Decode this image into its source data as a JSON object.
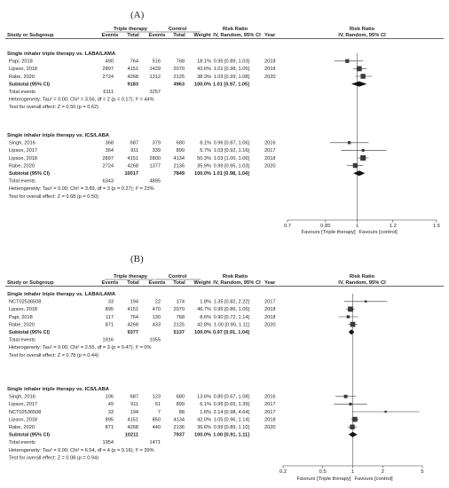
{
  "panels": [
    {
      "label": "(A)",
      "header": {
        "col_group_1": "Triple therapy",
        "col_group_2": "Control",
        "col_group_3": "Risk Ratio",
        "col_group_4": "Risk Ratio",
        "study": "Study or Subgroup",
        "events1": "Events",
        "total1": "Total",
        "events2": "Events",
        "total2": "Total",
        "weight": "Weight",
        "method": "IV, Random, 95% CI",
        "year": "Year",
        "method2": "IV, Random, 95% CI"
      },
      "subgroups": [
        {
          "title": "Single inhaler triple therapy vs. LABA/LAMA",
          "rows": [
            {
              "study": "Papi, 2018",
              "events1": "490",
              "total1": "764",
              "events2": "516",
              "total2": "768",
              "weight": "18.1%",
              "ci": "0.95 [0.89, 1.03]",
              "year": "2018"
            },
            {
              "study": "Lipson, 2018",
              "events1": "2897",
              "total1": "4151",
              "events2": "1429",
              "total2": "2070",
              "weight": "43.6%",
              "ci": "1.01 [0.98, 1.05]",
              "year": "2018"
            },
            {
              "study": "Rabe, 2020",
              "events1": "2724",
              "total1": "4268",
              "events2": "1312",
              "total2": "2125",
              "weight": "38.3%",
              "ci": "1.03 [0.99, 1.08]",
              "year": "2020"
            }
          ],
          "subtotal": {
            "label": "Subtotal (95% CI)",
            "total1": "9183",
            "total2": "4963",
            "weight": "100.0%",
            "ci": "1.01 [0.97, 1.05]"
          },
          "total_events": {
            "label": "Total events",
            "events1": "6111",
            "events2": "3257"
          },
          "heterogeneity": "Heterogeneity: Tau² = 0.00; Chi² = 3.56, df = 2 (p = 0.17); I² = 44%",
          "overall": "Test for overall effect: Z = 0.50 (p = 0.62)"
        },
        {
          "title": "Single inhaler triple therapy vs. ICS/LABA",
          "rows": [
            {
              "study": "Singh, 2016",
              "events1": "368",
              "total1": "687",
              "events2": "379",
              "total2": "680",
              "weight": "8.1%",
              "ci": "0.96 [0.87, 1.06]",
              "year": "2016"
            },
            {
              "study": "Lipson, 2017",
              "events1": "354",
              "total1": "911",
              "events2": "339",
              "total2": "899",
              "weight": "5.7%",
              "ci": "1.03 [0.92, 1.16]",
              "year": "2017"
            },
            {
              "study": "Lipson, 2018",
              "events1": "2897",
              "total1": "4151",
              "events2": "2800",
              "total2": "4134",
              "weight": "50.3%",
              "ci": "1.03 [1.00, 1.06]",
              "year": "2018"
            },
            {
              "study": "Rabe, 2020",
              "events1": "2724",
              "total1": "4268",
              "events2": "1377",
              "total2": "2136",
              "weight": "35.9%",
              "ci": "0.99 [0.95, 1.03]",
              "year": "2020"
            }
          ],
          "subtotal": {
            "label": "Subtotal (95% CI)",
            "total1": "10017",
            "total2": "7849",
            "weight": "100.0%",
            "ci": "1.01 [0.98, 1.04]"
          },
          "total_events": {
            "label": "Total events",
            "events1": "6343",
            "events2": "4895"
          },
          "heterogeneity": "Heterogeneity: Tau² = 0.00; Chi² = 3.89, df = 3 (p = 0.27); I² = 23%",
          "overall": "Test for overall effect: Z = 0.68 (p = 0.50)"
        }
      ],
      "axis_ticks": [
        "0.7",
        "0.85",
        "1",
        "1.2",
        "1.5"
      ],
      "favours_left": "Favours [Triple therapy]",
      "favours_right": "Favours [control]"
    },
    {
      "label": "(B)",
      "header": {
        "col_group_1": "Triple therapy",
        "col_group_2": "Control",
        "col_group_3": "Risk Ratio",
        "col_group_4": "Risk Ratio",
        "study": "Study or Subgroup",
        "events1": "Events",
        "total1": "Total",
        "events2": "Events",
        "total2": "Total",
        "weight": "Weight",
        "method": "IV, Random, 95% CI",
        "year": "Year",
        "method2": "IV, Random, 95% CI"
      },
      "subgroups": [
        {
          "title": "Single inhaler triple therapy vs. LABA/LAMA",
          "rows": [
            {
              "study": "NCT02536508",
              "events1": "33",
              "total1": "194",
              "events2": "22",
              "total2": "174",
              "weight": "1.8%",
              "ci": "1.35 [0.82, 2.22]",
              "year": "2017"
            },
            {
              "study": "Lipson, 2018",
              "events1": "895",
              "total1": "4151",
              "events2": "470",
              "total2": "2070",
              "weight": "46.7%",
              "ci": "0.95 [0.86, 1.05]",
              "year": "2018"
            },
            {
              "study": "Papi, 2018",
              "events1": "117",
              "total1": "764",
              "events2": "130",
              "total2": "768",
              "weight": "8.6%",
              "ci": "0.90 [0.72, 1.14]",
              "year": "2018"
            },
            {
              "study": "Rabe, 2020",
              "events1": "871",
              "total1": "4268",
              "events2": "433",
              "total2": "2125",
              "weight": "42.8%",
              "ci": "1.00 [0.90, 1.11]",
              "year": "2020"
            }
          ],
          "subtotal": {
            "label": "Subtotal (95% CI)",
            "total1": "9377",
            "total2": "5137",
            "weight": "100.0%",
            "ci": "0.97 [0.91, 1.04]"
          },
          "total_events": {
            "label": "Total events",
            "events1": "1916",
            "events2": "1055"
          },
          "heterogeneity": "Heterogeneity: Tau² = 0.00; Chi² = 2.55, df = 3 (p = 0.47); I² = 0%",
          "overall": "Test for overall effect: Z = 0.78 (p = 0.44)"
        },
        {
          "title": "Single inhaler triple therapy vs. ICS/LABA",
          "rows": [
            {
              "study": "Singh, 2016",
              "events1": "106",
              "total1": "687",
              "events2": "123",
              "total2": "680",
              "weight": "13.6%",
              "ci": "0.85 [0.67, 1.08]",
              "year": "2016"
            },
            {
              "study": "Lipson, 2017",
              "events1": "49",
              "total1": "911",
              "events2": "51",
              "total2": "899",
              "weight": "6.1%",
              "ci": "0.95 [0.65, 1.39]",
              "year": "2017"
            },
            {
              "study": "NCT02536508",
              "events1": "33",
              "total1": "194",
              "events2": "7",
              "total2": "88",
              "weight": "1.6%",
              "ci": "2.14 [0.98, 4.64]",
              "year": "2017"
            },
            {
              "study": "Lipson, 2018",
              "events1": "895",
              "total1": "4151",
              "events2": "850",
              "total2": "4134",
              "weight": "42.0%",
              "ci": "1.05 [0.96, 1.14]",
              "year": "2018"
            },
            {
              "study": "Rabe, 2020",
              "events1": "871",
              "total1": "4268",
              "events2": "440",
              "total2": "2136",
              "weight": "36.6%",
              "ci": "0.99 [0.89, 1.10]",
              "year": "2020"
            }
          ],
          "subtotal": {
            "label": "Subtotal (95% CI)",
            "total1": "10211",
            "total2": "7937",
            "weight": "100.0%",
            "ci": "1.00 [0.91, 1.11]"
          },
          "total_events": {
            "label": "Total events",
            "events1": "1954",
            "events2": "1471"
          },
          "heterogeneity": "Heterogeneity: Tau² = 0.00; Chi² = 6.54, df = 4 (p = 0.16); I² = 39%",
          "overall": "Test for overall effect: Z = 0.08 (p = 0.94)"
        }
      ],
      "axis_ticks": [
        "0.2",
        "0.5",
        "1",
        "2",
        "5"
      ],
      "favours_left": "Favours [Triple therapy]",
      "favours_right": "Favours [control]"
    }
  ],
  "chart_data": [
    {
      "type": "forest",
      "title": "(A)",
      "xscale": "log",
      "xlim": [
        0.7,
        1.5
      ],
      "reference_line": 1,
      "series": [
        {
          "name": "Single inhaler triple therapy vs. LABA/LAMA",
          "points": [
            {
              "label": "Papi, 2018",
              "rr": 0.95,
              "lo": 0.89,
              "hi": 1.03,
              "weight": 18.1
            },
            {
              "label": "Lipson, 2018",
              "rr": 1.01,
              "lo": 0.98,
              "hi": 1.05,
              "weight": 43.6
            },
            {
              "label": "Rabe, 2020",
              "rr": 1.03,
              "lo": 0.99,
              "hi": 1.08,
              "weight": 38.3
            }
          ],
          "pooled": {
            "rr": 1.01,
            "lo": 0.97,
            "hi": 1.05
          }
        },
        {
          "name": "Single inhaler triple therapy vs. ICS/LABA",
          "points": [
            {
              "label": "Singh, 2016",
              "rr": 0.96,
              "lo": 0.87,
              "hi": 1.06,
              "weight": 8.1
            },
            {
              "label": "Lipson, 2017",
              "rr": 1.03,
              "lo": 0.92,
              "hi": 1.16,
              "weight": 5.7
            },
            {
              "label": "Lipson, 2018",
              "rr": 1.03,
              "lo": 1.0,
              "hi": 1.06,
              "weight": 50.3
            },
            {
              "label": "Rabe, 2020",
              "rr": 0.99,
              "lo": 0.95,
              "hi": 1.03,
              "weight": 35.9
            }
          ],
          "pooled": {
            "rr": 1.01,
            "lo": 0.98,
            "hi": 1.04
          }
        }
      ]
    },
    {
      "type": "forest",
      "title": "(B)",
      "xscale": "log",
      "xlim": [
        0.2,
        5
      ],
      "reference_line": 1,
      "series": [
        {
          "name": "Single inhaler triple therapy vs. LABA/LAMA",
          "points": [
            {
              "label": "NCT02536508",
              "rr": 1.35,
              "lo": 0.82,
              "hi": 2.22,
              "weight": 1.8
            },
            {
              "label": "Lipson, 2018",
              "rr": 0.95,
              "lo": 0.86,
              "hi": 1.05,
              "weight": 46.7
            },
            {
              "label": "Papi, 2018",
              "rr": 0.9,
              "lo": 0.72,
              "hi": 1.14,
              "weight": 8.6
            },
            {
              "label": "Rabe, 2020",
              "rr": 1.0,
              "lo": 0.9,
              "hi": 1.11,
              "weight": 42.8
            }
          ],
          "pooled": {
            "rr": 0.97,
            "lo": 0.91,
            "hi": 1.04
          }
        },
        {
          "name": "Single inhaler triple therapy vs. ICS/LABA",
          "points": [
            {
              "label": "Singh, 2016",
              "rr": 0.85,
              "lo": 0.67,
              "hi": 1.08,
              "weight": 13.6
            },
            {
              "label": "Lipson, 2017",
              "rr": 0.95,
              "lo": 0.65,
              "hi": 1.39,
              "weight": 6.1
            },
            {
              "label": "NCT02536508",
              "rr": 2.14,
              "lo": 0.98,
              "hi": 4.64,
              "weight": 1.6
            },
            {
              "label": "Lipson, 2018",
              "rr": 1.05,
              "lo": 0.96,
              "hi": 1.14,
              "weight": 42.0
            },
            {
              "label": "Rabe, 2020",
              "rr": 0.99,
              "lo": 0.89,
              "hi": 1.1,
              "weight": 36.6
            }
          ],
          "pooled": {
            "rr": 1.0,
            "lo": 0.91,
            "hi": 1.11
          }
        }
      ]
    }
  ],
  "colors": {
    "text": "#222222",
    "square": "#3a3a3a",
    "line": "#333333",
    "rule": "#444444"
  }
}
